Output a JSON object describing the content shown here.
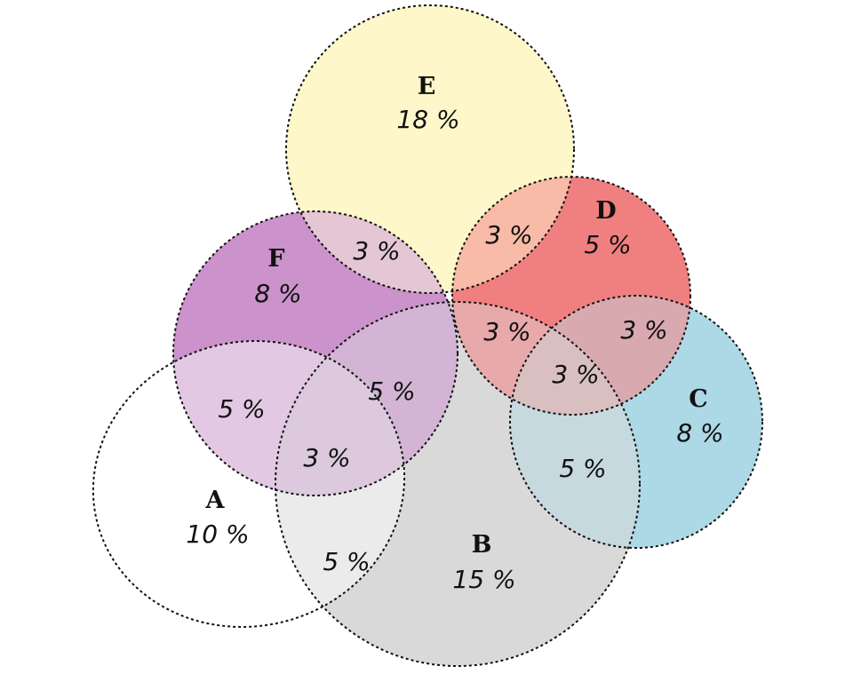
{
  "sets": [
    {
      "id": "A",
      "label": "A",
      "value": "10 %",
      "color": "#ffffff"
    },
    {
      "id": "B",
      "label": "B",
      "value": "15 %",
      "color": "#d9d9d9"
    },
    {
      "id": "C",
      "label": "C",
      "value": "8 %",
      "color": "#add8e6"
    },
    {
      "id": "D",
      "label": "D",
      "value": "5 %",
      "color": "#f08080"
    },
    {
      "id": "E",
      "label": "E",
      "value": "18 %",
      "color": "#fdf7c9"
    },
    {
      "id": "F",
      "label": "F",
      "value": "8 %",
      "color": "#cc92cc"
    }
  ],
  "intersections": [
    {
      "sets": [
        "E",
        "F"
      ],
      "value": "3 %"
    },
    {
      "sets": [
        "E",
        "D"
      ],
      "value": "3 %"
    },
    {
      "sets": [
        "A",
        "F"
      ],
      "value": "5 %"
    },
    {
      "sets": [
        "B",
        "F"
      ],
      "value": "5 %"
    },
    {
      "sets": [
        "A",
        "B",
        "F"
      ],
      "value": "3 %"
    },
    {
      "sets": [
        "A",
        "B"
      ],
      "value": "5 %"
    },
    {
      "sets": [
        "B",
        "D"
      ],
      "value": "3 %"
    },
    {
      "sets": [
        "C",
        "D"
      ],
      "value": "3 %"
    },
    {
      "sets": [
        "B",
        "C",
        "D"
      ],
      "value": "3 %"
    },
    {
      "sets": [
        "B",
        "C"
      ],
      "value": "5 %"
    }
  ]
}
